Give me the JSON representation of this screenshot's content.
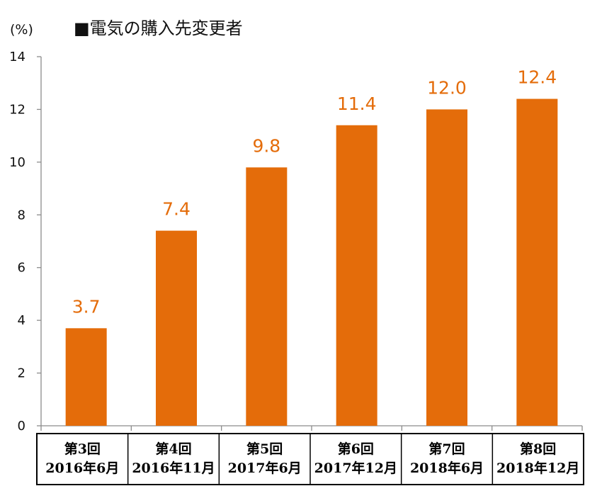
{
  "chart_data": {
    "type": "bar",
    "title": "■電気の購入先変更者",
    "ylabel": "(%)",
    "ylim": [
      0,
      14
    ],
    "yticks": [
      0,
      2,
      4,
      6,
      8,
      10,
      12,
      14
    ],
    "grid": false,
    "bar_color": "#e46c0a",
    "categories": [
      {
        "line1": "第3回",
        "line2": "2016年6月"
      },
      {
        "line1": "第4回",
        "line2": "2016年11月"
      },
      {
        "line1": "第5回",
        "line2": "2017年6月"
      },
      {
        "line1": "第6回",
        "line2": "2017年12月"
      },
      {
        "line1": "第7回",
        "line2": "2018年6月"
      },
      {
        "line1": "第8回",
        "line2": "2018年12月"
      }
    ],
    "values": [
      3.7,
      7.4,
      9.8,
      11.4,
      12.0,
      12.4
    ],
    "data_labels": [
      "3.7",
      "7.4",
      "9.8",
      "11.4",
      "12.0",
      "12.4"
    ]
  }
}
